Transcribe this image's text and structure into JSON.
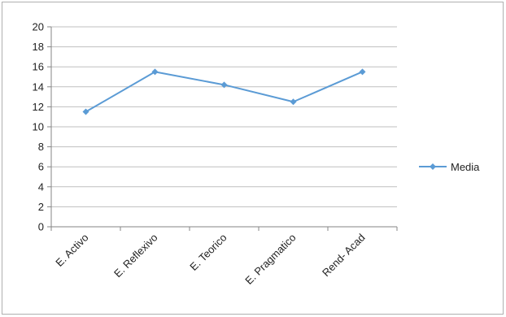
{
  "chart_data": {
    "type": "line",
    "categories": [
      "E. Activo",
      "E. Reflexivo",
      "E. Teorico",
      "E. Pragmatico",
      "Rend- Acad"
    ],
    "series": [
      {
        "name": "Media",
        "values": [
          11.5,
          15.5,
          14.2,
          12.5,
          15.5
        ],
        "color": "#5b9bd5"
      }
    ],
    "ylim": [
      0,
      20
    ],
    "yticks": [
      0,
      2,
      4,
      6,
      8,
      10,
      12,
      14,
      16,
      18,
      20
    ],
    "grid": true,
    "legend_position": "right",
    "title": "",
    "xlabel": "",
    "ylabel": ""
  }
}
